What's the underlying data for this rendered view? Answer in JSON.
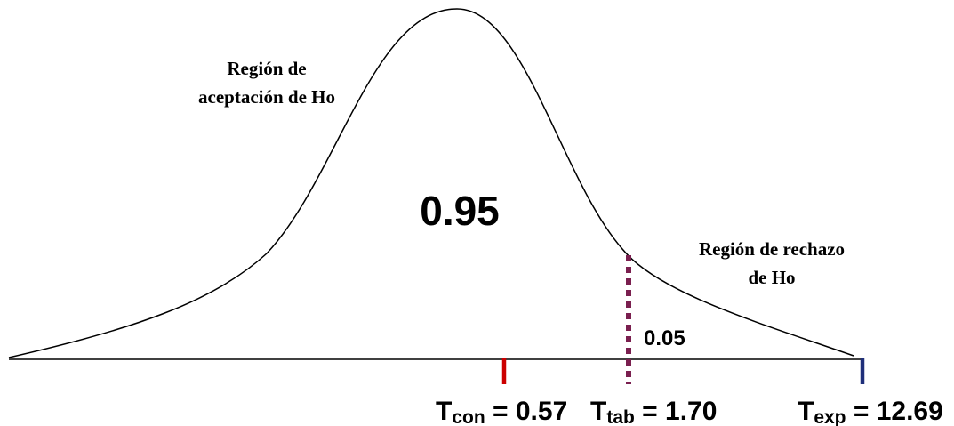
{
  "labels": {
    "acceptance_line1": "Región de",
    "acceptance_line2": "aceptación de Ho",
    "rejection_line1": "Región de rechazo",
    "rejection_line2": "de Ho",
    "acceptance_area": "0.95",
    "rejection_area": "0.05"
  },
  "markers": {
    "con": {
      "symbol": "T",
      "subscript": "con",
      "value_text": " = 0.57",
      "color": "#cc0000"
    },
    "tab": {
      "symbol": "T",
      "subscript": "tab",
      "value_text": " = 1.70",
      "color": "#7a1f4f"
    },
    "exp": {
      "symbol": "T",
      "subscript": "exp",
      "value_text": " = 12.69",
      "color": "#1f2f7a"
    }
  },
  "colors": {
    "curve": "#000000",
    "axis": "#000000"
  }
}
